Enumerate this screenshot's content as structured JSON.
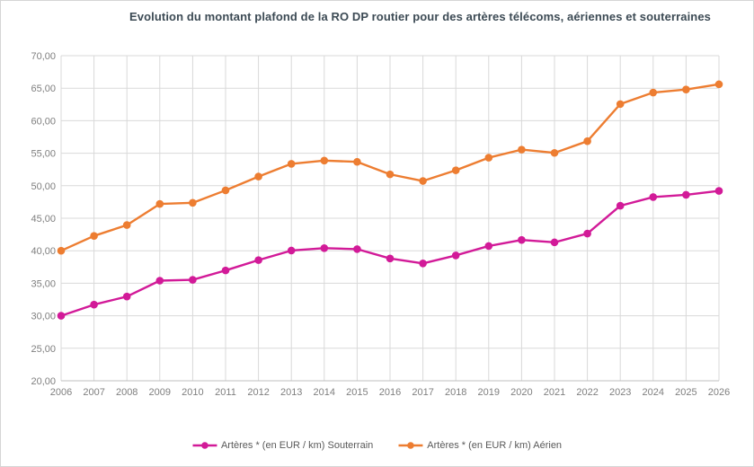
{
  "window": {
    "background": "#ffffff",
    "border_color": "#d5d5d5"
  },
  "chart_data": {
    "type": "line",
    "title": "Evolution du montant plafond de la RO DP routier pour des artères télécoms, aériennes et souterraines",
    "title_color": "#3c4a54",
    "categories": [
      "2006",
      "2007",
      "2008",
      "2009",
      "2010",
      "2011",
      "2012",
      "2013",
      "2014",
      "2015",
      "2016",
      "2017",
      "2018",
      "2019",
      "2020",
      "2021",
      "2022",
      "2023",
      "2024",
      "2025",
      "2026"
    ],
    "series": [
      {
        "name": "Artères * (en EUR / km) Souterrain",
        "color": "#d21a98",
        "values": [
          30.0,
          31.71,
          32.96,
          35.4,
          35.53,
          36.97,
          38.56,
          40.03,
          40.4,
          40.25,
          38.81,
          38.05,
          39.28,
          40.73,
          41.66,
          41.29,
          42.64,
          46.92,
          48.25,
          48.6,
          49.2
        ]
      },
      {
        "name": "Artères * (en EUR / km) Aérien",
        "color": "#ed7d31",
        "values": [
          40.0,
          42.28,
          43.95,
          47.2,
          47.37,
          49.29,
          51.41,
          53.37,
          53.87,
          53.67,
          51.75,
          50.73,
          52.37,
          54.31,
          55.55,
          55.05,
          56.85,
          62.56,
          64.33,
          64.8,
          65.6
        ]
      }
    ],
    "xlabel": "",
    "ylabel": "",
    "ylim": [
      20,
      70
    ],
    "y_tick_step": 5,
    "y_tick_labels": [
      "20,00",
      "25,00",
      "30,00",
      "35,00",
      "40,00",
      "45,00",
      "50,00",
      "55,00",
      "60,00",
      "65,00",
      "70,00"
    ],
    "grid": true,
    "grid_color": "#d9d9d9",
    "axis_color": "#bfbfbf",
    "tick_label_color": "#7f7f7f",
    "legend_text_color": "#595959",
    "legend_position": "bottom"
  }
}
